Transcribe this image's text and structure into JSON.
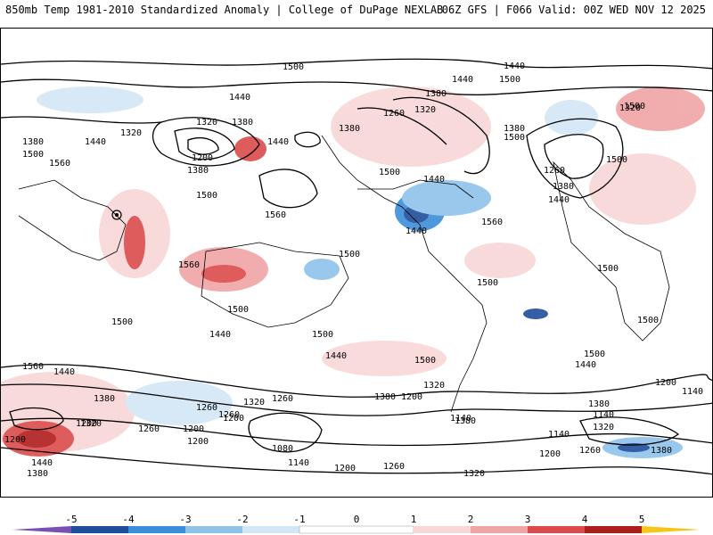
{
  "header": {
    "left_title": "850mb Temp 1981-2010 Standardized Anomaly | College of DuPage NEXLAB",
    "right_title": "06Z GFS | F066 Valid: 00Z WED NOV 12 2025"
  },
  "map": {
    "variable": "850mb temperature standardized anomaly",
    "contour_labels": [
      {
        "text": "1500"
      },
      {
        "text": "1440"
      },
      {
        "text": "1440"
      },
      {
        "text": "1380"
      },
      {
        "text": "1320"
      },
      {
        "text": "1380"
      },
      {
        "text": "1500"
      },
      {
        "text": "1440"
      },
      {
        "text": "1320"
      },
      {
        "text": "1380"
      },
      {
        "text": "1380"
      },
      {
        "text": "1500"
      },
      {
        "text": "1560"
      },
      {
        "text": "1200"
      },
      {
        "text": "1380"
      },
      {
        "text": "1500"
      },
      {
        "text": "1440"
      },
      {
        "text": "1380"
      },
      {
        "text": "1260"
      },
      {
        "text": "1320"
      },
      {
        "text": "1440"
      },
      {
        "text": "1500"
      },
      {
        "text": "1500"
      },
      {
        "text": "1560"
      },
      {
        "text": "1440"
      },
      {
        "text": "1440"
      },
      {
        "text": "1500"
      },
      {
        "text": "1500"
      },
      {
        "text": "1320"
      },
      {
        "text": "1260"
      },
      {
        "text": "1380"
      },
      {
        "text": "1440"
      },
      {
        "text": "1560"
      },
      {
        "text": "1560"
      },
      {
        "text": "1500"
      },
      {
        "text": "1500"
      },
      {
        "text": "1500"
      },
      {
        "text": "1500"
      },
      {
        "text": "1500"
      },
      {
        "text": "1500"
      },
      {
        "text": "1500"
      },
      {
        "text": "1500"
      },
      {
        "text": "1440"
      },
      {
        "text": "1500"
      },
      {
        "text": "1440"
      },
      {
        "text": "1560"
      },
      {
        "text": "1440"
      },
      {
        "text": "1380"
      },
      {
        "text": "1320"
      },
      {
        "text": "1380"
      },
      {
        "text": "1200"
      },
      {
        "text": "1260"
      },
      {
        "text": "1320"
      },
      {
        "text": "1200"
      },
      {
        "text": "1380"
      },
      {
        "text": "1140"
      },
      {
        "text": "1200"
      },
      {
        "text": "1320"
      },
      {
        "text": "1380"
      },
      {
        "text": "1440"
      },
      {
        "text": "1200"
      },
      {
        "text": "1260"
      },
      {
        "text": "1080"
      },
      {
        "text": "1140"
      },
      {
        "text": "1200"
      },
      {
        "text": "1260"
      },
      {
        "text": "1320"
      },
      {
        "text": "1140"
      },
      {
        "text": "1140"
      },
      {
        "text": "1200"
      },
      {
        "text": "1260"
      },
      {
        "text": "1380"
      },
      {
        "text": "1320"
      },
      {
        "text": "1260"
      },
      {
        "text": "1200"
      },
      {
        "text": "1440"
      },
      {
        "text": "1380"
      },
      {
        "text": "1140"
      },
      {
        "text": "1200"
      },
      {
        "text": "1260"
      },
      {
        "text": "1200"
      }
    ],
    "anomaly_colors": {
      "neg5": "#6a3d9a",
      "neg4": "#1f4e9c",
      "neg3": "#3b8fd9",
      "neg2": "#8ec3ea",
      "neg1": "#d3e6f6",
      "pos1": "#f9d7d7",
      "pos2": "#f0a5a5",
      "pos3": "#dc4b4b",
      "pos4": "#b01d1d",
      "pos5": "#6b0d0d",
      "cap_low": "#7a4fb5",
      "cap_high": "#f5c518"
    }
  },
  "colorbar": {
    "ticks": [
      "-5",
      "-4",
      "-3",
      "-2",
      "-1",
      "0",
      "1",
      "2",
      "3",
      "4",
      "5"
    ]
  }
}
